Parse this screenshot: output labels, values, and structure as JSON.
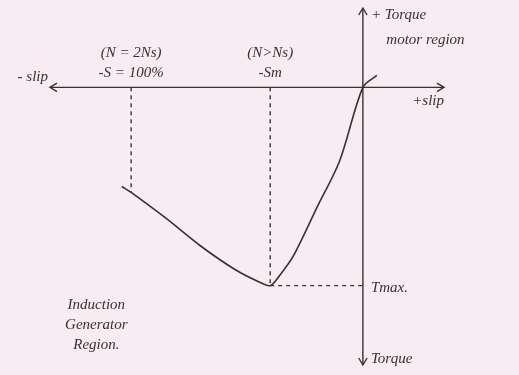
{
  "chart_data": {
    "type": "line",
    "x": [
      6,
      0,
      -10,
      -20,
      -30,
      -36,
      -40,
      -45,
      -55,
      -70,
      -85,
      -100,
      -104
    ],
    "values": [
      0.06,
      0,
      -0.37,
      -0.61,
      -0.85,
      -0.95,
      -1.0,
      -0.98,
      -0.92,
      -0.8,
      -0.66,
      -0.53,
      -0.5
    ],
    "color": "#333333",
    "marker": "none",
    "xlim": [
      -135,
      35
    ],
    "ylim": [
      -1.4,
      0.4
    ],
    "xticks": [],
    "yticks": [],
    "tick_labels": false,
    "grid": false,
    "axis_labels": {
      "x_left": "- slip",
      "x_right": "+slip",
      "y_top": "+ Torque",
      "y_bottom": "Torque"
    },
    "x_markers": [
      {
        "value": -100,
        "label": "-S = 100%",
        "note": "(N = 2Ns)"
      },
      {
        "value": -40,
        "label": "-Sm",
        "note": "(N>Ns)"
      }
    ],
    "y_markers": [
      {
        "value": -1,
        "label": "Tmax."
      }
    ],
    "annotations": [
      {
        "text": "motor region",
        "x": 27,
        "y": 0.24
      },
      {
        "text": "Induction Generator Region.",
        "x": -115,
        "y": -1.2
      }
    ]
  }
}
